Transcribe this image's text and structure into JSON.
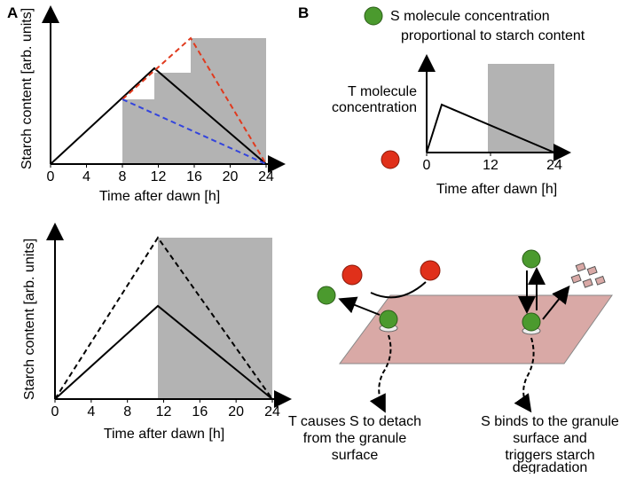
{
  "panel_a": {
    "label": "A",
    "top": {
      "y_label": "Starch content [arb. units]",
      "x_label": "Time after dawn [h]",
      "xticks": [
        0,
        4,
        8,
        12,
        16,
        20,
        24
      ]
    },
    "bottom": {
      "y_label": "Starch content [arb. units]",
      "x_label": "Time after dawn [h]",
      "xticks": [
        0,
        4,
        8,
        12,
        16,
        20,
        24
      ]
    }
  },
  "panel_b": {
    "label": "B",
    "legend_s": [
      "S molecule concentration",
      "proportional to starch content"
    ],
    "plot": {
      "y_label": [
        "T molecule",
        "concentration"
      ],
      "x_label": "Time after dawn [h]",
      "xticks": [
        0,
        12,
        24
      ]
    },
    "caption_left": [
      "T causes S to detach",
      "from the granule",
      "surface"
    ],
    "caption_right": [
      "S binds to the granule",
      "surface and",
      "triggers starch",
      "degradation"
    ]
  }
}
